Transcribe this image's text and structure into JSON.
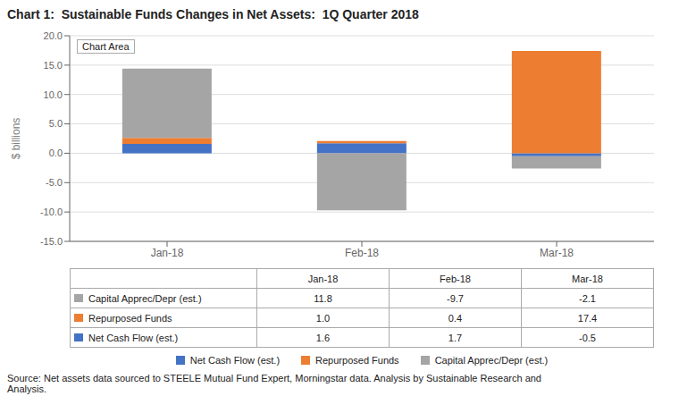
{
  "chart_data": {
    "type": "bar",
    "title": "Chart 1:  Sustainable Funds Changes in Net Assets:  1Q Quarter 2018",
    "categories": [
      "Jan-18",
      "Feb-18",
      "Mar-18"
    ],
    "series": [
      {
        "name": "Net Cash Flow (est.)",
        "color": "#4472c4",
        "values": [
          1.6,
          1.7,
          -0.5
        ],
        "value_labels": [
          "1.6",
          "1.7",
          "-0.5"
        ]
      },
      {
        "name": "Repurposed Funds",
        "color": "#ed7d31",
        "values": [
          1.0,
          0.4,
          17.4
        ],
        "value_labels": [
          "1.0",
          "0.4",
          "17.4"
        ]
      },
      {
        "name": "Capital Apprec/Depr (est.)",
        "color": "#a5a5a5",
        "values": [
          11.8,
          -9.7,
          -2.1
        ],
        "value_labels": [
          "11.8",
          "-9.7",
          "-2.1"
        ]
      }
    ],
    "ylabel": "$ billions",
    "ylim": [
      -15.0,
      20.0
    ],
    "yticks": [
      {
        "value": -15,
        "label": "-15.0"
      },
      {
        "value": -10,
        "label": "-10.0"
      },
      {
        "value": -5,
        "label": "-5.0"
      },
      {
        "value": 0,
        "label": "0.0"
      },
      {
        "value": 5,
        "label": "5.0"
      },
      {
        "value": 10,
        "label": "10.0"
      },
      {
        "value": 15,
        "label": "15.0"
      },
      {
        "value": 20,
        "label": "20.0"
      }
    ],
    "grid": true,
    "stacked": true,
    "legend": "bottom",
    "annotations": [
      "Chart Area"
    ],
    "source": "Source:  Net assets data sourced to STEELE Mutual Fund Expert, Morningstar data. Analysis by Sustainable Research and\nAnalysis."
  }
}
